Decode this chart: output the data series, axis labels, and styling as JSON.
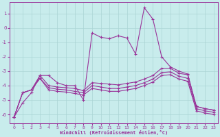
{
  "xlabel": "Windchill (Refroidissement éolien,°C)",
  "bg_color": "#c8ecec",
  "grid_color": "#aad4d4",
  "line_color": "#993399",
  "xlim": [
    -0.5,
    23.5
  ],
  "ylim": [
    -6.6,
    1.8
  ],
  "yticks": [
    1,
    0,
    -1,
    -2,
    -3,
    -4,
    -5,
    -6
  ],
  "xticks": [
    0,
    1,
    2,
    3,
    4,
    5,
    6,
    7,
    8,
    9,
    10,
    11,
    12,
    13,
    14,
    15,
    16,
    17,
    18,
    19,
    20,
    21,
    22,
    23
  ],
  "x": [
    0,
    1,
    2,
    3,
    4,
    5,
    6,
    7,
    8,
    9,
    10,
    11,
    12,
    13,
    14,
    15,
    16,
    17,
    18,
    19,
    20,
    21,
    22,
    23
  ],
  "line1_y": [
    -6.2,
    -5.2,
    -4.5,
    -3.3,
    -3.3,
    -3.8,
    -4.0,
    -4.0,
    -5.0,
    -0.35,
    -0.65,
    -0.75,
    -0.55,
    -0.7,
    -1.8,
    1.4,
    0.6,
    -2.0,
    -2.7,
    -3.0,
    -3.2,
    -5.45,
    -5.6,
    -5.7
  ],
  "line2_y": [
    -6.2,
    -4.5,
    -4.3,
    -3.3,
    -4.0,
    -4.1,
    -4.15,
    -4.2,
    -4.35,
    -3.8,
    -3.85,
    -3.9,
    -3.95,
    -3.85,
    -3.75,
    -3.55,
    -3.3,
    -2.8,
    -2.8,
    -3.15,
    -3.25,
    -5.45,
    -5.6,
    -5.7
  ],
  "line3_y": [
    -6.2,
    -4.5,
    -4.3,
    -3.5,
    -4.15,
    -4.25,
    -4.3,
    -4.4,
    -4.5,
    -4.0,
    -4.1,
    -4.2,
    -4.2,
    -4.1,
    -4.0,
    -3.8,
    -3.55,
    -3.1,
    -3.05,
    -3.35,
    -3.5,
    -5.6,
    -5.75,
    -5.85
  ],
  "line4_y": [
    -6.2,
    -4.5,
    -4.3,
    -3.5,
    -4.3,
    -4.4,
    -4.45,
    -4.55,
    -4.65,
    -4.2,
    -4.3,
    -4.4,
    -4.4,
    -4.3,
    -4.2,
    -4.0,
    -3.75,
    -3.3,
    -3.25,
    -3.55,
    -3.7,
    -5.75,
    -5.9,
    -6.0
  ]
}
